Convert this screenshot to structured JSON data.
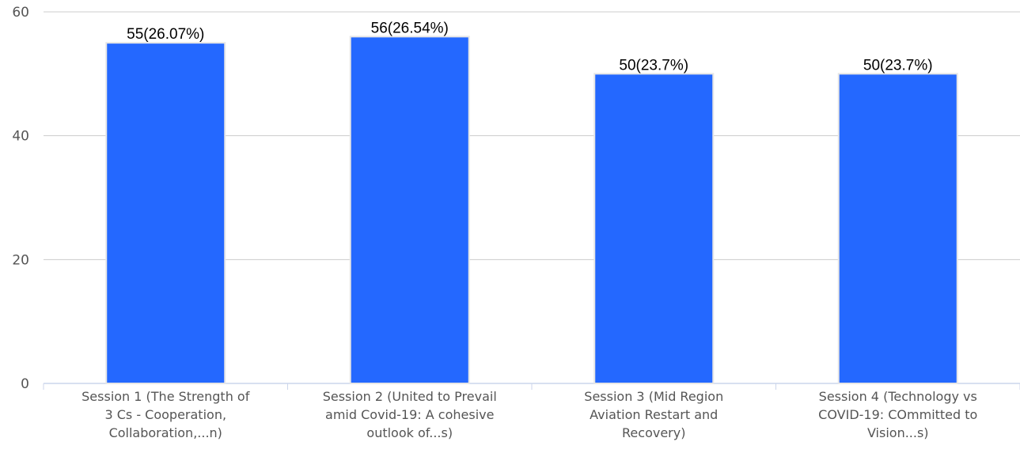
{
  "chart_data": {
    "type": "bar",
    "categories": [
      [
        "Session 1 (The Strength of",
        "3 Cs - Cooperation,",
        "Collaboration,...n)"
      ],
      [
        "Session 2 (United to Prevail",
        "amid Covid-19: A cohesive",
        "outlook of...s)"
      ],
      [
        "Session 3 (Mid Region",
        "Aviation Restart and",
        "Recovery)"
      ],
      [
        "Session 4 (Technology vs",
        "COVID-19: COmmitted to",
        "Vision...s)"
      ]
    ],
    "values": [
      55,
      56,
      50,
      50
    ],
    "data_labels": [
      "55(26.07%)",
      "56(26.54%)",
      "50(23.7%)",
      "50(23.7%)"
    ],
    "title": "",
    "xlabel": "",
    "ylabel": "",
    "ylim": [
      0,
      60
    ],
    "yticks": [
      "0",
      "20",
      "40",
      "60"
    ],
    "ytick_values": [
      0,
      20,
      40,
      60
    ],
    "grid": "horizontal",
    "legend": "none",
    "colors": {
      "bar": "#2468ff",
      "bar_border": "#e6e6e6",
      "grid": "#cccccc",
      "axis": "#ccd6eb"
    }
  }
}
